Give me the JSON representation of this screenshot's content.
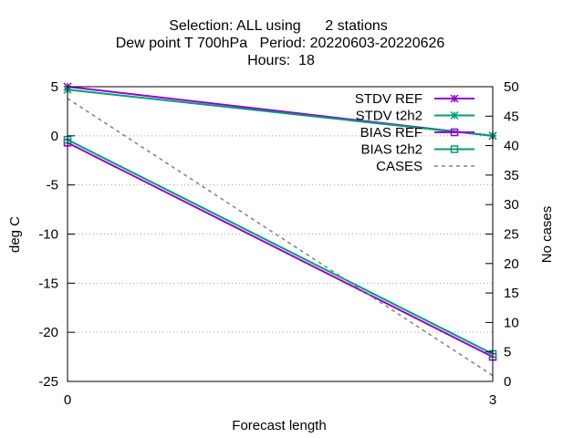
{
  "chart_data": {
    "type": "line",
    "title_lines": [
      "Selection: ALL using      2 stations",
      "Dew point T 700hPa   Period: 20220603-20220626",
      "Hours:  18"
    ],
    "xlabel": "Forecast length",
    "ylabel": "deg C",
    "y2label": "No cases",
    "xlim": [
      0,
      3
    ],
    "ylim": [
      -25,
      5
    ],
    "y2lim": [
      0,
      50
    ],
    "xticks": [
      0,
      3
    ],
    "yticks": [
      -25,
      -20,
      -15,
      -10,
      -5,
      0,
      5
    ],
    "y2ticks": [
      0,
      5,
      10,
      15,
      20,
      25,
      30,
      35,
      40,
      45,
      50
    ],
    "grid": "horizontal dotted",
    "legend_position": "top-right",
    "series": [
      {
        "name": "STDV REF",
        "axis": "y",
        "x": [
          0,
          3
        ],
        "y": [
          5.0,
          0.0
        ],
        "color": "#9400d3",
        "marker": "star",
        "dash": "solid"
      },
      {
        "name": "STDV t2h2",
        "axis": "y",
        "x": [
          0,
          3
        ],
        "y": [
          4.7,
          0.0
        ],
        "color": "#009e73",
        "marker": "star",
        "dash": "solid"
      },
      {
        "name": "BIAS REF",
        "axis": "y",
        "x": [
          0,
          3
        ],
        "y": [
          -0.7,
          -22.5
        ],
        "color": "#9400d3",
        "marker": "square",
        "dash": "solid"
      },
      {
        "name": "BIAS t2h2",
        "axis": "y",
        "x": [
          0,
          3
        ],
        "y": [
          -0.4,
          -22.2
        ],
        "color": "#009e73",
        "marker": "square",
        "dash": "solid"
      },
      {
        "name": "CASES",
        "axis": "y2",
        "x": [
          0,
          3
        ],
        "y": [
          48,
          1
        ],
        "color": "#808080",
        "marker": "none",
        "dash": "dashed"
      }
    ]
  }
}
